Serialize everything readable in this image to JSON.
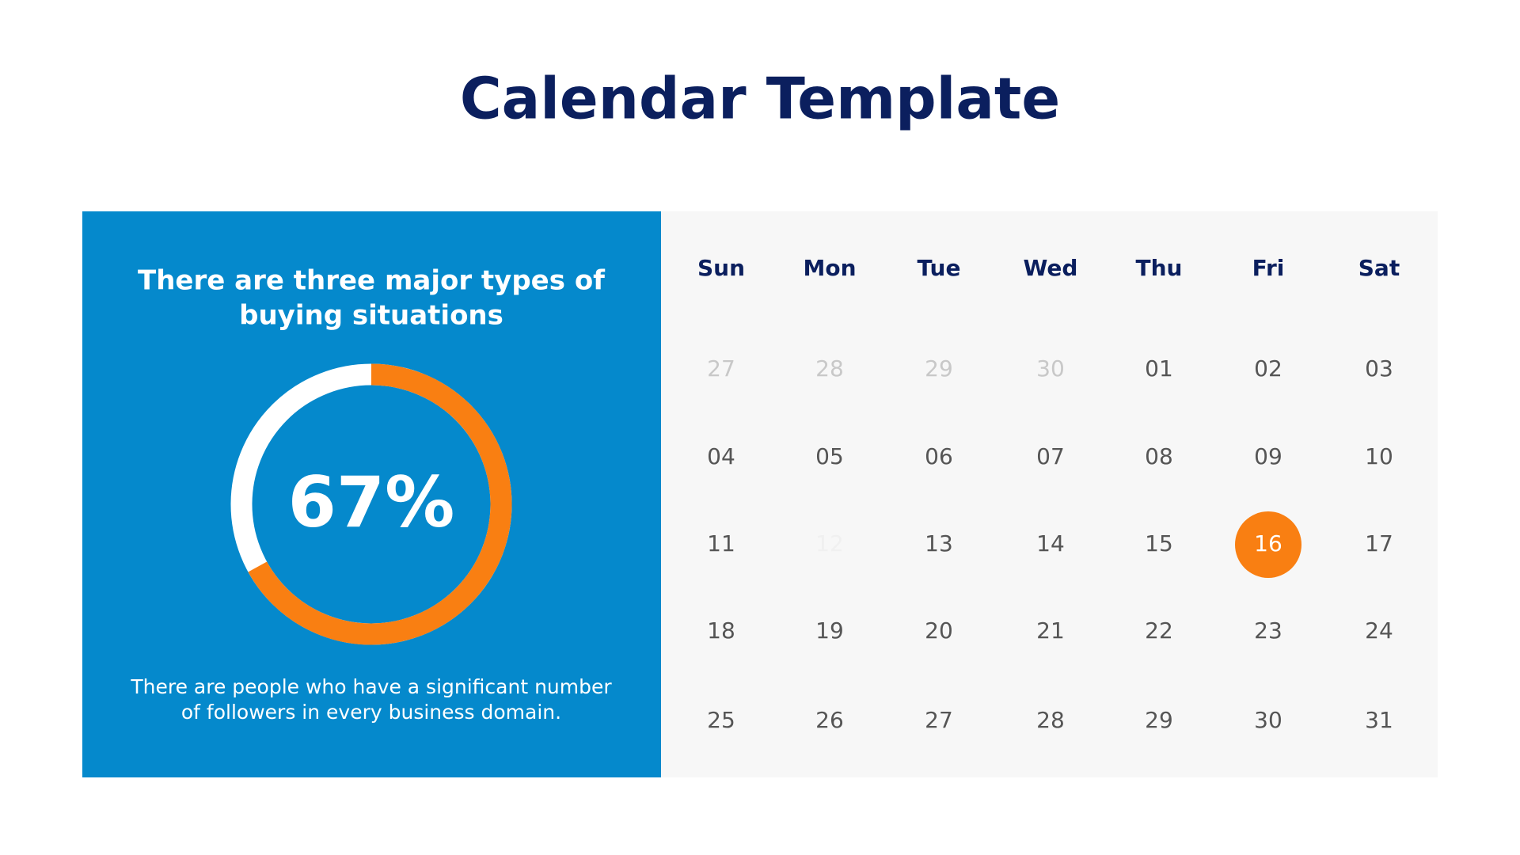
{
  "title": "Calendar Template",
  "panel": {
    "heading": [
      "There are three major types of",
      "buying situations"
    ],
    "progress": {
      "value": 67,
      "label": "67%",
      "color": "#f97f12",
      "track_color": "#ffffff"
    },
    "description": [
      "There are people who have a significant number",
      "of followers in every business domain."
    ]
  },
  "calendar": {
    "days": [
      "Sun",
      "Mon",
      "Tue",
      "Wed",
      "Thu",
      "Fri",
      "Sat"
    ],
    "weeks": [
      [
        {
          "day": "27",
          "style": "muted"
        },
        {
          "day": "28",
          "style": "muted"
        },
        {
          "day": "29",
          "style": "muted"
        },
        {
          "day": "30",
          "style": "muted"
        },
        {
          "day": "01"
        },
        {
          "day": "02"
        },
        {
          "day": "03"
        }
      ],
      [
        {
          "day": "04"
        },
        {
          "day": "05"
        },
        {
          "day": "06"
        },
        {
          "day": "07"
        },
        {
          "day": "08"
        },
        {
          "day": "09"
        },
        {
          "day": "10"
        }
      ],
      [
        {
          "day": "11"
        },
        {
          "day": "12",
          "style": "hidden"
        },
        {
          "day": "13"
        },
        {
          "day": "14"
        },
        {
          "day": "15"
        },
        {
          "day": "16",
          "style": "selected"
        },
        {
          "day": "17"
        }
      ],
      [
        {
          "day": "18"
        },
        {
          "day": "19"
        },
        {
          "day": "20"
        },
        {
          "day": "21"
        },
        {
          "day": "22"
        },
        {
          "day": "23"
        },
        {
          "day": "24"
        }
      ],
      [
        {
          "day": "25"
        },
        {
          "day": "26"
        },
        {
          "day": "27"
        },
        {
          "day": "28"
        },
        {
          "day": "29"
        },
        {
          "day": "30"
        },
        {
          "day": "31"
        }
      ]
    ],
    "selected_color": "#f97f12"
  }
}
